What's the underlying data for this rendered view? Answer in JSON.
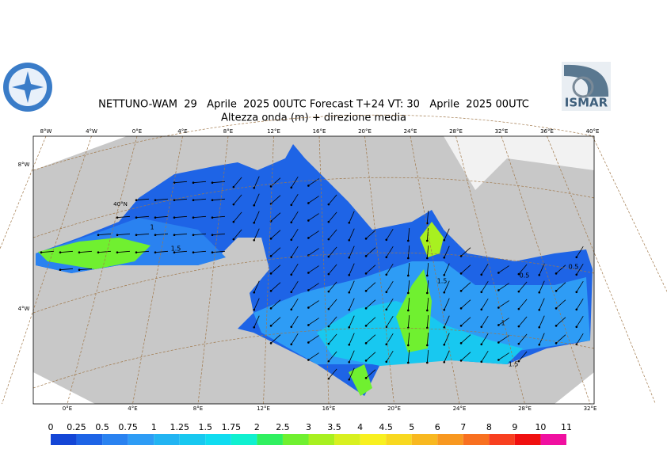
{
  "header": {
    "title": "NETTUNO-WAM  29   Aprile  2025 00UTC Forecast T+24 VT: 30   Aprile  2025 00UTC",
    "subtitle": "Altezza onda (m) + direzione media",
    "logo_right": "ISMAR"
  },
  "map": {
    "top_labels": [
      "8°W",
      "4°W",
      "0°E",
      "4°E",
      "8°E",
      "12°E",
      "16°E",
      "20°E",
      "24°E",
      "28°E",
      "32°E",
      "36°E",
      "40°E"
    ],
    "bottom_labels": [
      "0°E",
      "4°E",
      "8°E",
      "12°E",
      "16°E",
      "20°E",
      "24°E",
      "28°E",
      "32°E"
    ],
    "left_labels": [
      "8°W",
      "4°W"
    ],
    "inner_labels": [
      "40°N"
    ],
    "contour_labels": [
      "1",
      "1.5",
      "1.5",
      "0.5",
      "0.5",
      "1",
      "1.5"
    ]
  },
  "colorbar": {
    "ticks": [
      0,
      0.25,
      0.5,
      0.75,
      1,
      1.25,
      1.5,
      1.75,
      2,
      2.5,
      3,
      3.5,
      4,
      4.5,
      5,
      6,
      7,
      8,
      9,
      10,
      11
    ],
    "colors": [
      "#1446d6",
      "#1e64e6",
      "#2a82f0",
      "#2e9cf5",
      "#22b4f2",
      "#18c8f0",
      "#10dcf0",
      "#10f0d0",
      "#30f060",
      "#70f030",
      "#a8f020",
      "#d8f020",
      "#f8f020",
      "#f8d820",
      "#f8b820",
      "#f89820",
      "#f87020",
      "#f84020",
      "#f01010",
      "#f010a0"
    ]
  }
}
